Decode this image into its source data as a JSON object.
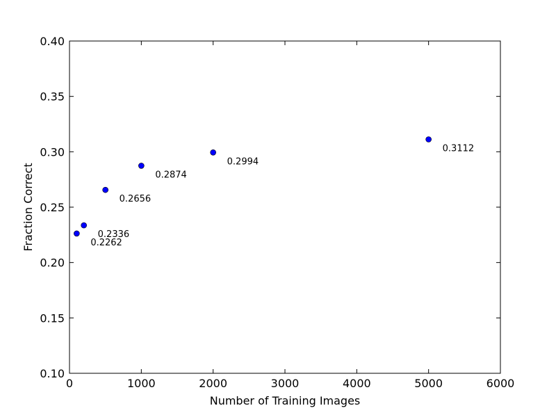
{
  "chart_data": {
    "type": "scatter",
    "title": "",
    "xlabel": "Number of Training Images",
    "ylabel": "Fraction Correct",
    "xlim": [
      0,
      6000
    ],
    "ylim": [
      0.1,
      0.4
    ],
    "grid": false,
    "marker_color": "#0000ff",
    "x_ticks": [
      0,
      1000,
      2000,
      3000,
      4000,
      5000,
      6000
    ],
    "x_tick_labels": [
      "0",
      "1000",
      "2000",
      "3000",
      "4000",
      "5000",
      "6000"
    ],
    "y_ticks": [
      0.1,
      0.15,
      0.2,
      0.25,
      0.3,
      0.35,
      0.4
    ],
    "y_tick_labels": [
      "0.10",
      "0.15",
      "0.20",
      "0.25",
      "0.30",
      "0.35",
      "0.40"
    ],
    "points": [
      {
        "x": 100,
        "y": 0.2262,
        "label": "0.2262"
      },
      {
        "x": 200,
        "y": 0.2336,
        "label": "0.2336"
      },
      {
        "x": 500,
        "y": 0.2656,
        "label": "0.2656"
      },
      {
        "x": 1000,
        "y": 0.2874,
        "label": "0.2874"
      },
      {
        "x": 2000,
        "y": 0.2994,
        "label": "0.2994"
      },
      {
        "x": 5000,
        "y": 0.3112,
        "label": "0.3112"
      }
    ]
  }
}
